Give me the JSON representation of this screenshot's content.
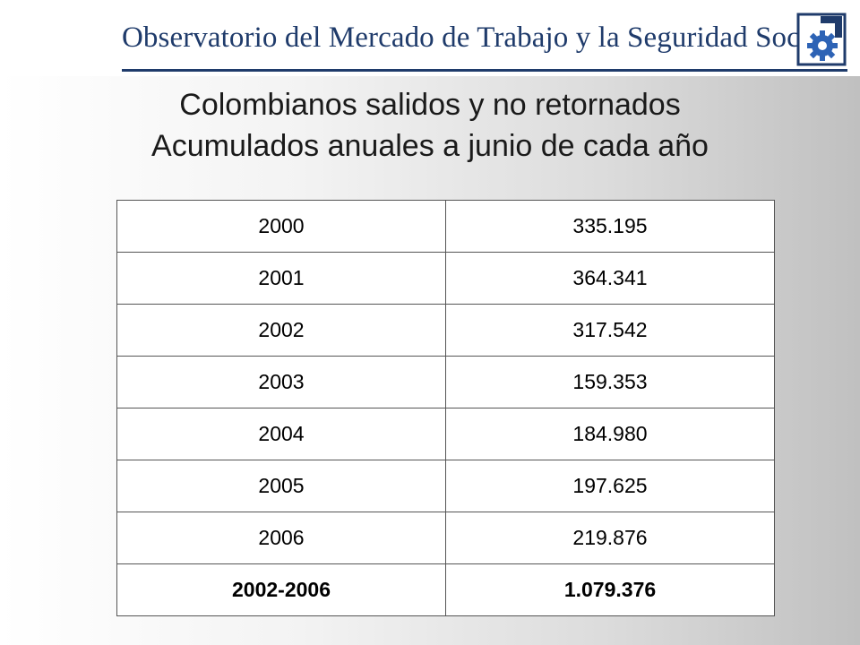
{
  "header": {
    "organization": "Observatorio del Mercado de Trabajo y la Seguridad Social",
    "logo_icon": "gear-icon",
    "brand_color": "#1f3b6b"
  },
  "title": {
    "line1": "Colombianos salidos y no retornados",
    "line2": "Acumulados anuales a junio de cada año"
  },
  "table": {
    "rows": [
      {
        "year": "2000",
        "value": "335.195"
      },
      {
        "year": "2001",
        "value": "364.341"
      },
      {
        "year": "2002",
        "value": "317.542"
      },
      {
        "year": "2003",
        "value": "159.353"
      },
      {
        "year": "2004",
        "value": "184.980"
      },
      {
        "year": "2005",
        "value": "197.625"
      },
      {
        "year": "2006",
        "value": "219.876"
      }
    ],
    "total": {
      "year": "2002-2006",
      "value": "1.079.376"
    }
  }
}
